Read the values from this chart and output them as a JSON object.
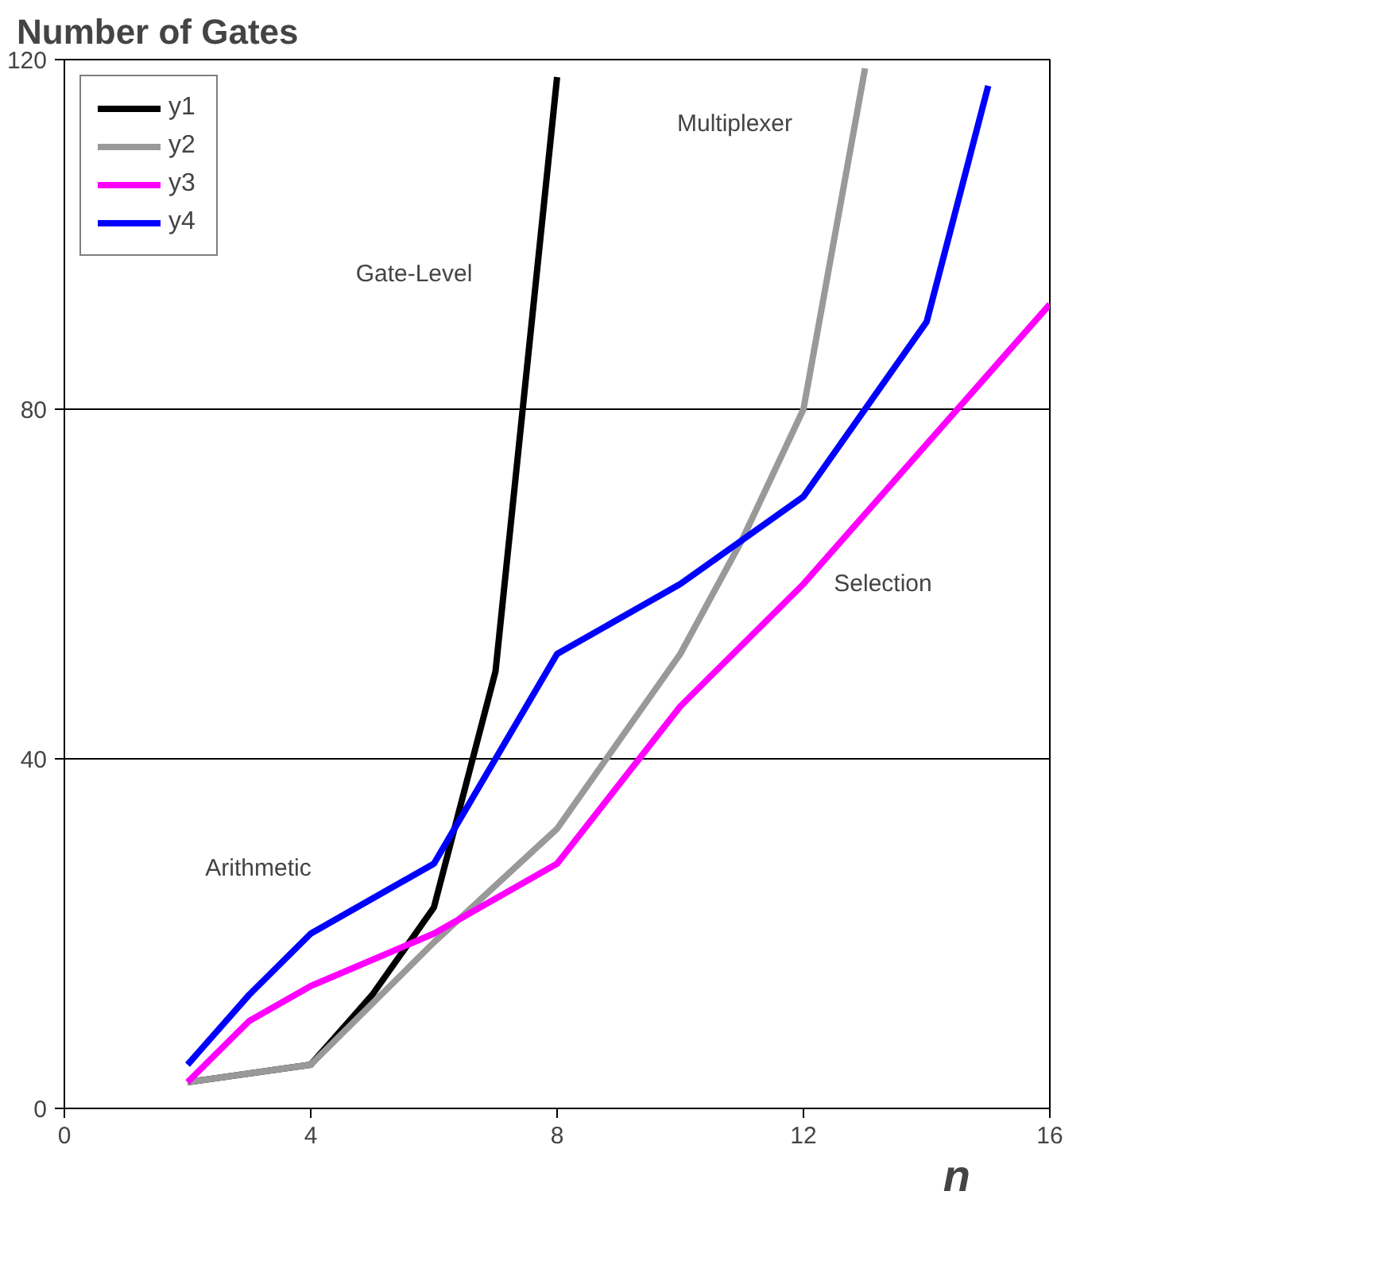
{
  "chart_data": {
    "type": "line",
    "ylabel": "Number of Gates",
    "xlabel": "n",
    "xlim": [
      0,
      16
    ],
    "xticks": [
      0,
      4,
      8,
      12,
      16
    ],
    "ylim": [
      0,
      120
    ],
    "yticks": [
      0,
      40,
      80,
      120
    ],
    "grid": "y",
    "legend": "top left",
    "marker": "none",
    "line_style": "solid",
    "series": [
      {
        "name": "y1",
        "color": "#000000",
        "x": [
          2,
          4,
          5,
          6,
          7,
          8
        ],
        "values": [
          3,
          5,
          13,
          23,
          50,
          118
        ]
      },
      {
        "name": "y2",
        "color": "#999999",
        "x": [
          2,
          4,
          6,
          8,
          10,
          11,
          12,
          13
        ],
        "values": [
          3,
          5,
          19,
          32,
          52,
          65,
          80,
          119
        ]
      },
      {
        "name": "y3",
        "color": "#ff00ff",
        "x": [
          2,
          3,
          4,
          6,
          8,
          10,
          12,
          16
        ],
        "values": [
          3,
          10,
          14,
          20,
          28,
          46,
          60,
          92
        ]
      },
      {
        "name": "y4",
        "color": "#0000ff",
        "x": [
          2,
          3,
          4,
          6,
          8,
          10,
          12,
          14,
          15
        ],
        "values": [
          5,
          13,
          20,
          28,
          52,
          60,
          70,
          90,
          117
        ]
      }
    ],
    "annotations": [
      "Gate-Level",
      "Multiplexer",
      "Selection",
      "Arithmetic"
    ]
  }
}
